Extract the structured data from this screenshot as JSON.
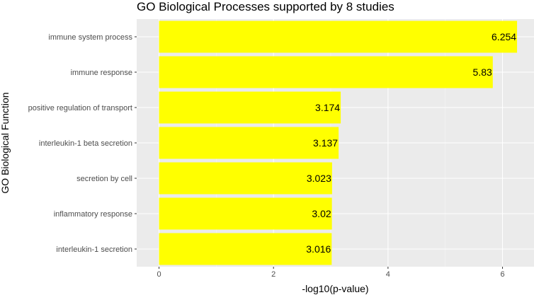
{
  "chart_data": {
    "type": "bar",
    "orientation": "horizontal",
    "title": "GO Biological Processes supported by 8 studies",
    "xlabel": "-log10(p-value)",
    "ylabel": "GO Biological Function",
    "categories": [
      "immune system process",
      "immune response",
      "positive regulation of transport",
      "interleukin-1 beta secretion",
      "secretion by cell",
      "inflammatory response",
      "interleukin-1 secretion"
    ],
    "values": [
      6.254,
      5.83,
      3.174,
      3.137,
      3.023,
      3.02,
      3.016
    ],
    "value_labels": [
      "6.254",
      "5.83",
      "3.174",
      "3.137",
      "3.023",
      "3.02",
      "3.016"
    ],
    "xlim": [
      -0.39,
      6.55
    ],
    "x_ticks": [
      0,
      2,
      4,
      6
    ],
    "x_tick_labels": [
      "0",
      "2",
      "4",
      "6"
    ],
    "grid": true,
    "colors": {
      "bar": "#ffff00",
      "panel": "#ebebeb",
      "grid_major": "#ffffff",
      "grid_minor": "#f5f5f5",
      "tick": "#333333"
    }
  }
}
